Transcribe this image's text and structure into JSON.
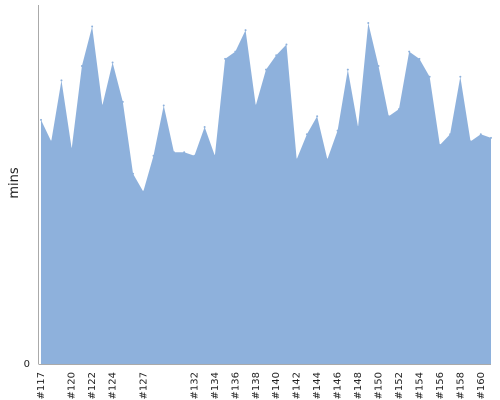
{
  "chart_data": {
    "type": "area",
    "ylabel": "mins",
    "ylim": [
      0,
      100
    ],
    "y_tick_labels": [
      "0"
    ],
    "series": [
      {
        "color": "#8eb1dc",
        "x": [
          "#117",
          "#118",
          "#119",
          "#120",
          "#121",
          "#122",
          "#123",
          "#124",
          "#125",
          "#126",
          "#127",
          "#128",
          "#129",
          "#130",
          "#131",
          "#132",
          "#133",
          "#134",
          "#135",
          "#136",
          "#137",
          "#138",
          "#139",
          "#140",
          "#141",
          "#142",
          "#143",
          "#144",
          "#145",
          "#146",
          "#147",
          "#148",
          "#149",
          "#150",
          "#151",
          "#152",
          "#153",
          "#154",
          "#155",
          "#156",
          "#157",
          "#158",
          "#159",
          "#160",
          "#161"
        ],
        "values": [
          68,
          62,
          79,
          60,
          83,
          94,
          72,
          84,
          73,
          53,
          48,
          58,
          72,
          59,
          59,
          58,
          66,
          58,
          85,
          87,
          93,
          72,
          82,
          86,
          89,
          57,
          64,
          69,
          57,
          65,
          82,
          66,
          95,
          83,
          69,
          71,
          87,
          85,
          80,
          61,
          64,
          80,
          62,
          64,
          63
        ]
      }
    ],
    "x_tick_labels": [
      "#117",
      "#120",
      "#122",
      "#124",
      "#127",
      "#132",
      "#134",
      "#136",
      "#138",
      "#140",
      "#142",
      "#144",
      "#146",
      "#148",
      "#150",
      "#152",
      "#154",
      "#156",
      "#158",
      "#160"
    ],
    "grid": false
  }
}
